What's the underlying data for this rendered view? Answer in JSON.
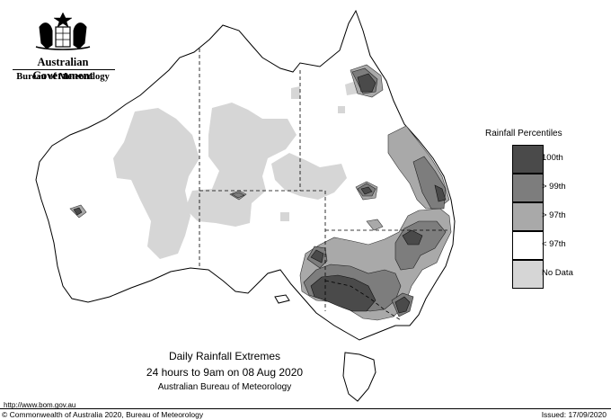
{
  "header": {
    "gov_title": "Australian Government",
    "bureau": "Bureau of Meteorology",
    "crest_icon": "coat-of-arms-icon"
  },
  "legend": {
    "title": "Rainfall Percentiles",
    "items": [
      {
        "label": "100th",
        "color": "#4a4a4a"
      },
      {
        "label": "> 99th",
        "color": "#7d7d7d"
      },
      {
        "label": "> 97th",
        "color": "#a9a9a9"
      },
      {
        "label": "< 97th",
        "color": "#ffffff"
      },
      {
        "label": "No Data",
        "color": "#d6d6d6"
      }
    ]
  },
  "map_title": {
    "line1": "Daily Rainfall Extremes",
    "line2": "24 hours to 9am on 08 Aug 2020",
    "line3": "Australian Bureau of Meteorology"
  },
  "footer": {
    "url": "http://www.bom.gov.au",
    "copyright": "© Commonwealth of Australia 2020, Bureau of Meteorology",
    "issued": "Issued: 17/09/2020"
  }
}
